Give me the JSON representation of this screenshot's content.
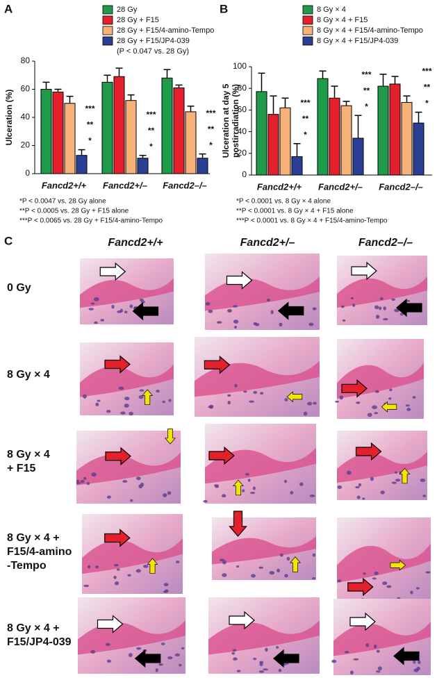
{
  "chart_data": [
    {
      "type": "bar",
      "panel": "A",
      "ylabel": [
        "Ulceration (%)"
      ],
      "categories": [
        "Fancd2+/+",
        "Fancd2+/–",
        "Fancd2–/–"
      ],
      "ylim": [
        0,
        80
      ],
      "yticks": [
        0,
        20,
        40,
        60,
        80
      ],
      "series": [
        {
          "name": "28 Gy",
          "color": "#1e9a4a",
          "values": [
            60,
            65,
            68
          ],
          "errors": [
            5,
            5,
            6
          ]
        },
        {
          "name": "28 Gy + F15",
          "color": "#e3202b",
          "values": [
            58,
            69,
            61
          ],
          "errors": [
            2,
            6,
            2
          ]
        },
        {
          "name": "28 Gy + F15/4-amino-Tempo",
          "color": "#f7b27a",
          "values": [
            50,
            52,
            44
          ],
          "errors": [
            5,
            4,
            4
          ]
        },
        {
          "name": "28 Gy + F15/JP4-039",
          "color": "#2b3f95",
          "values": [
            13,
            11,
            11
          ],
          "errors": [
            4,
            2,
            3
          ]
        }
      ],
      "legend_note": "(P < 0.047 vs. 28 Gy)",
      "significance": [
        "***",
        "**",
        "*"
      ],
      "footnotes": [
        "*P < 0.0047 vs. 28 Gy alone",
        "**P < 0.0005 vs. 28 Gy + F15 alone",
        "***P < 0.0065 vs. 28 Gy + F15/4-amino-Tempo"
      ]
    },
    {
      "type": "bar",
      "panel": "B",
      "ylabel": [
        "Ulceration at day 5",
        "postirradiation (%)"
      ],
      "categories": [
        "Fancd2+/+",
        "Fancd2+/–",
        "Fancd2–/–"
      ],
      "ylim": [
        0,
        100
      ],
      "yticks": [
        0,
        20,
        40,
        60,
        80,
        100
      ],
      "series": [
        {
          "name": "8 Gy × 4",
          "color": "#1e9a4a",
          "values": [
            77,
            89,
            82
          ],
          "errors": [
            17,
            7,
            11
          ]
        },
        {
          "name": "8 Gy × 4 + F15",
          "color": "#e3202b",
          "values": [
            56,
            71,
            84
          ],
          "errors": [
            17,
            11,
            7
          ]
        },
        {
          "name": "8 Gy × 4 + F15/4-amino-Tempo",
          "color": "#f7b27a",
          "values": [
            62,
            64,
            67
          ],
          "errors": [
            9,
            4,
            6
          ]
        },
        {
          "name": "8 Gy × 4 + F15/JP4-039",
          "color": "#2b3f95",
          "values": [
            17,
            34,
            48
          ],
          "errors": [
            12,
            21,
            10
          ]
        }
      ],
      "significance": [
        "***",
        "**",
        "*"
      ],
      "footnotes": [
        "*P < 0.0001 vs. 8 Gy × 4 alone",
        "**P < 0.0001 vs. 8 Gy × 4 + F15 alone",
        "***P < 0.0001 vs. 8 Gy × 4 + F15/4-amino-Tempo"
      ]
    }
  ],
  "panel_c": {
    "panel": "C",
    "column_headers": [
      "Fancd2+/+",
      "Fancd2+/–",
      "Fancd2–/–"
    ],
    "row_labels": [
      [
        "0 Gy"
      ],
      [
        "8 Gy × 4"
      ],
      [
        "8 Gy × 4",
        "+ F15"
      ],
      [
        "8 Gy × 4 +",
        "F15/4-amino",
        "-Tempo"
      ],
      [
        "8 Gy × 4 +",
        "F15/JP4-039"
      ]
    ]
  }
}
